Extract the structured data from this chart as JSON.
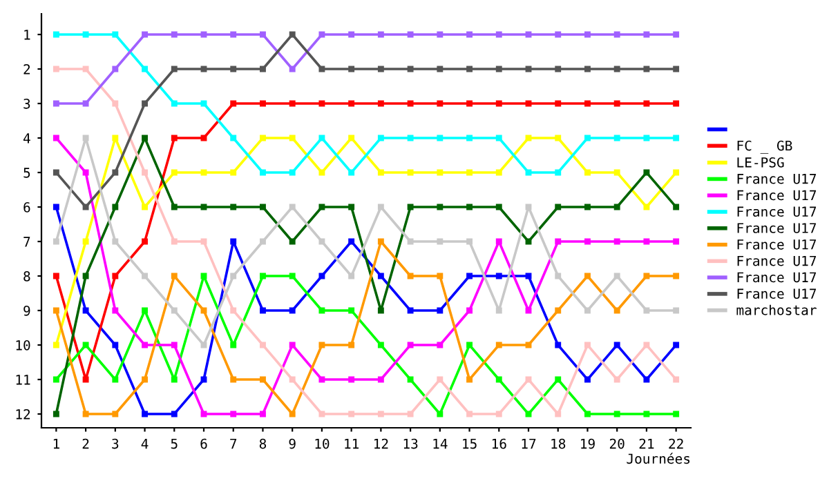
{
  "chart_data": {
    "type": "line",
    "xlabel": "Journées",
    "x": [
      1,
      2,
      3,
      4,
      5,
      6,
      7,
      8,
      9,
      10,
      11,
      12,
      13,
      14,
      15,
      16,
      17,
      18,
      19,
      20,
      21,
      22
    ],
    "xlim": [
      0.5,
      22.5
    ],
    "xticks": [
      1,
      2,
      3,
      4,
      5,
      6,
      7,
      8,
      9,
      10,
      11,
      12,
      13,
      14,
      15,
      16,
      17,
      18,
      19,
      20,
      21,
      22
    ],
    "ylim": [
      12.4,
      0.4
    ],
    "yticks": [
      1,
      2,
      3,
      4,
      5,
      6,
      7,
      8,
      9,
      10,
      11,
      12
    ],
    "grid": false,
    "legend": "right",
    "marker": "square",
    "line_style": "solid",
    "series": [
      {
        "color": "#0000ff",
        "values": [
          6,
          9,
          10,
          12,
          12,
          11,
          7,
          9,
          9,
          8,
          7,
          8,
          9,
          9,
          8,
          8,
          8,
          10,
          11,
          10,
          11,
          10
        ]
      },
      {
        "name": "FC _ GB",
        "color": "#ff0000",
        "values": [
          8,
          11,
          8,
          7,
          4,
          4,
          3,
          3,
          3,
          3,
          3,
          3,
          3,
          3,
          3,
          3,
          3,
          3,
          3,
          3,
          3,
          3
        ]
      },
      {
        "name": "LE-PSG",
        "color": "#ffff00",
        "values": [
          10,
          7,
          4,
          6,
          5,
          5,
          5,
          4,
          4,
          5,
          4,
          5,
          5,
          5,
          5,
          5,
          4,
          4,
          5,
          5,
          6,
          5
        ]
      },
      {
        "name": "France U17",
        "color": "#00ff00",
        "values": [
          11,
          10,
          11,
          9,
          11,
          8,
          10,
          8,
          8,
          9,
          9,
          10,
          11,
          12,
          10,
          11,
          12,
          11,
          12,
          12,
          12,
          12
        ]
      },
      {
        "name": "France U17",
        "color": "#ff00ff",
        "values": [
          4,
          5,
          9,
          10,
          10,
          12,
          12,
          12,
          10,
          11,
          11,
          11,
          10,
          10,
          9,
          7,
          9,
          7,
          7,
          7,
          7,
          7
        ]
      },
      {
        "name": "France U17",
        "color": "#00ffff",
        "values": [
          1,
          1,
          1,
          2,
          3,
          3,
          4,
          5,
          5,
          4,
          5,
          4,
          4,
          4,
          4,
          4,
          5,
          5,
          4,
          4,
          4,
          4
        ]
      },
      {
        "name": "France U17",
        "color": "#006400",
        "values": [
          12,
          8,
          6,
          4,
          6,
          6,
          6,
          6,
          7,
          6,
          6,
          9,
          6,
          6,
          6,
          6,
          7,
          6,
          6,
          6,
          5,
          6
        ]
      },
      {
        "name": "France U17",
        "color": "#ff9900",
        "values": [
          9,
          12,
          12,
          11,
          8,
          9,
          11,
          11,
          12,
          10,
          10,
          7,
          8,
          8,
          11,
          10,
          10,
          9,
          8,
          9,
          8,
          8
        ]
      },
      {
        "name": "France U17",
        "color": "#ffc0c0",
        "values": [
          2,
          2,
          3,
          5,
          7,
          7,
          9,
          10,
          11,
          12,
          12,
          12,
          12,
          11,
          12,
          12,
          11,
          12,
          10,
          11,
          10,
          11
        ]
      },
      {
        "name": "France U17",
        "color": "#a060ff",
        "values": [
          3,
          3,
          2,
          1,
          1,
          1,
          1,
          1,
          2,
          1,
          1,
          1,
          1,
          1,
          1,
          1,
          1,
          1,
          1,
          1,
          1,
          1
        ]
      },
      {
        "name": "France U17",
        "color": "#555555",
        "values": [
          5,
          6,
          5,
          3,
          2,
          2,
          2,
          2,
          1,
          2,
          2,
          2,
          2,
          2,
          2,
          2,
          2,
          2,
          2,
          2,
          2,
          2
        ]
      },
      {
        "name": "marchostar",
        "color": "#c8c8c8",
        "values": [
          7,
          4,
          7,
          8,
          9,
          10,
          8,
          7,
          6,
          7,
          8,
          6,
          7,
          7,
          7,
          9,
          6,
          8,
          9,
          8,
          9,
          9
        ]
      }
    ]
  }
}
